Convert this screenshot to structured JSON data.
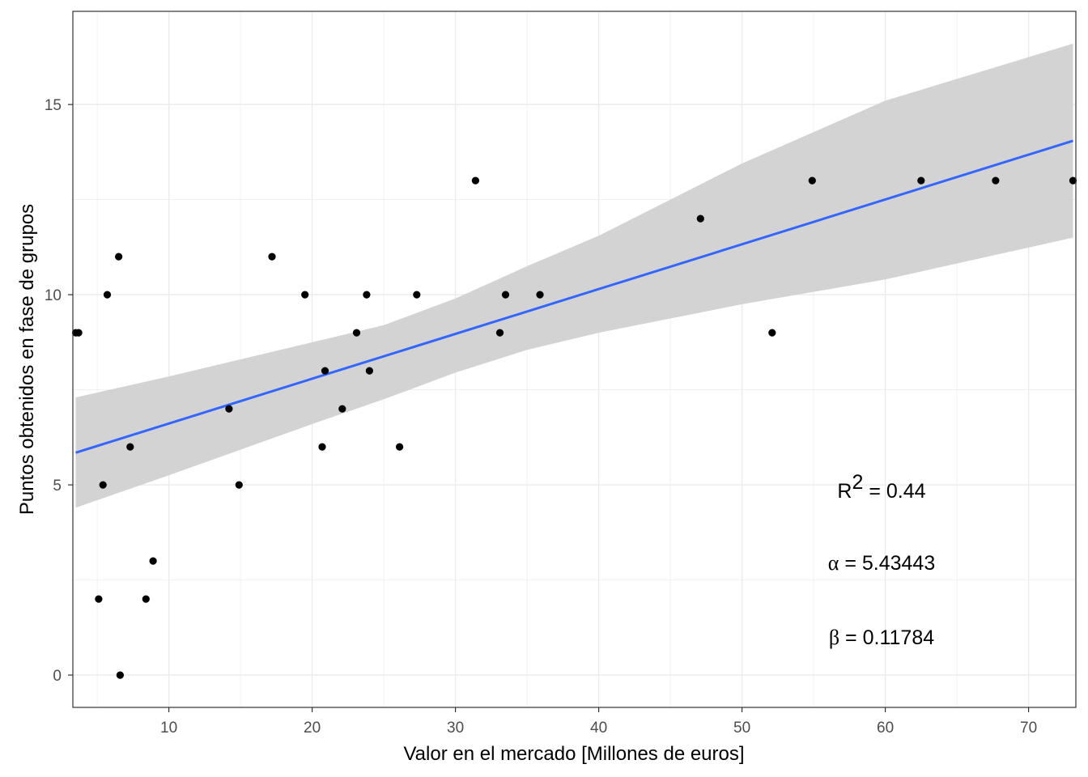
{
  "chart_data": {
    "type": "scatter",
    "xlabel": "Valor en el mercado [Millones de euros]",
    "ylabel": "Puntos obtenidos en fase de grupos",
    "xlim": [
      3.3,
      73.3
    ],
    "ylim": [
      -0.85,
      17.45
    ],
    "x_ticks": [
      10,
      20,
      30,
      40,
      50,
      60,
      70
    ],
    "y_ticks": [
      0,
      5,
      10,
      15
    ],
    "grid": true,
    "legend": "none",
    "colors": {
      "points": "#000000",
      "fit_line": "#3366FF",
      "confidence_band": "#D3D3D3",
      "grid": "#EBEBEB",
      "panel_border": "#333333"
    },
    "points": [
      {
        "x": 3.5,
        "y": 9
      },
      {
        "x": 3.7,
        "y": 9
      },
      {
        "x": 5.1,
        "y": 2
      },
      {
        "x": 5.4,
        "y": 5
      },
      {
        "x": 5.7,
        "y": 10
      },
      {
        "x": 6.5,
        "y": 11
      },
      {
        "x": 6.6,
        "y": 0
      },
      {
        "x": 7.3,
        "y": 6
      },
      {
        "x": 8.4,
        "y": 2
      },
      {
        "x": 8.9,
        "y": 3
      },
      {
        "x": 14.2,
        "y": 7
      },
      {
        "x": 14.9,
        "y": 5
      },
      {
        "x": 17.2,
        "y": 11
      },
      {
        "x": 19.5,
        "y": 10
      },
      {
        "x": 20.7,
        "y": 6
      },
      {
        "x": 20.9,
        "y": 8
      },
      {
        "x": 22.1,
        "y": 7
      },
      {
        "x": 23.1,
        "y": 9
      },
      {
        "x": 23.8,
        "y": 10
      },
      {
        "x": 24.0,
        "y": 8
      },
      {
        "x": 26.1,
        "y": 6
      },
      {
        "x": 27.3,
        "y": 10
      },
      {
        "x": 31.4,
        "y": 13
      },
      {
        "x": 33.1,
        "y": 9
      },
      {
        "x": 33.5,
        "y": 10
      },
      {
        "x": 35.9,
        "y": 10
      },
      {
        "x": 47.1,
        "y": 12
      },
      {
        "x": 52.1,
        "y": 9
      },
      {
        "x": 54.9,
        "y": 13
      },
      {
        "x": 62.5,
        "y": 13
      },
      {
        "x": 67.7,
        "y": 13
      },
      {
        "x": 73.1,
        "y": 13
      }
    ],
    "fit": {
      "intercept": 5.43443,
      "slope": 0.11784,
      "x_range": [
        3.5,
        73.1
      ],
      "band": [
        {
          "x": 3.5,
          "lower": 4.4,
          "upper": 7.3
        },
        {
          "x": 10,
          "lower": 5.25,
          "upper": 7.85
        },
        {
          "x": 20,
          "lower": 6.6,
          "upper": 8.75
        },
        {
          "x": 25,
          "lower": 7.25,
          "upper": 9.2
        },
        {
          "x": 30,
          "lower": 7.95,
          "upper": 9.9
        },
        {
          "x": 35,
          "lower": 8.55,
          "upper": 10.75
        },
        {
          "x": 40,
          "lower": 9.0,
          "upper": 11.55
        },
        {
          "x": 50,
          "lower": 9.75,
          "upper": 13.45
        },
        {
          "x": 60,
          "lower": 10.4,
          "upper": 15.1
        },
        {
          "x": 73.1,
          "lower": 11.5,
          "upper": 16.6
        }
      ]
    },
    "annotations": {
      "r2_label": "R",
      "r2_sup": "2",
      "r2_eq": " = ",
      "r2_value": "0.44",
      "alpha_symbol": "α",
      "alpha_eq": " = ",
      "alpha_value": "5.43443",
      "beta_symbol": "β",
      "beta_eq": " = ",
      "beta_value": "0.11784"
    }
  }
}
